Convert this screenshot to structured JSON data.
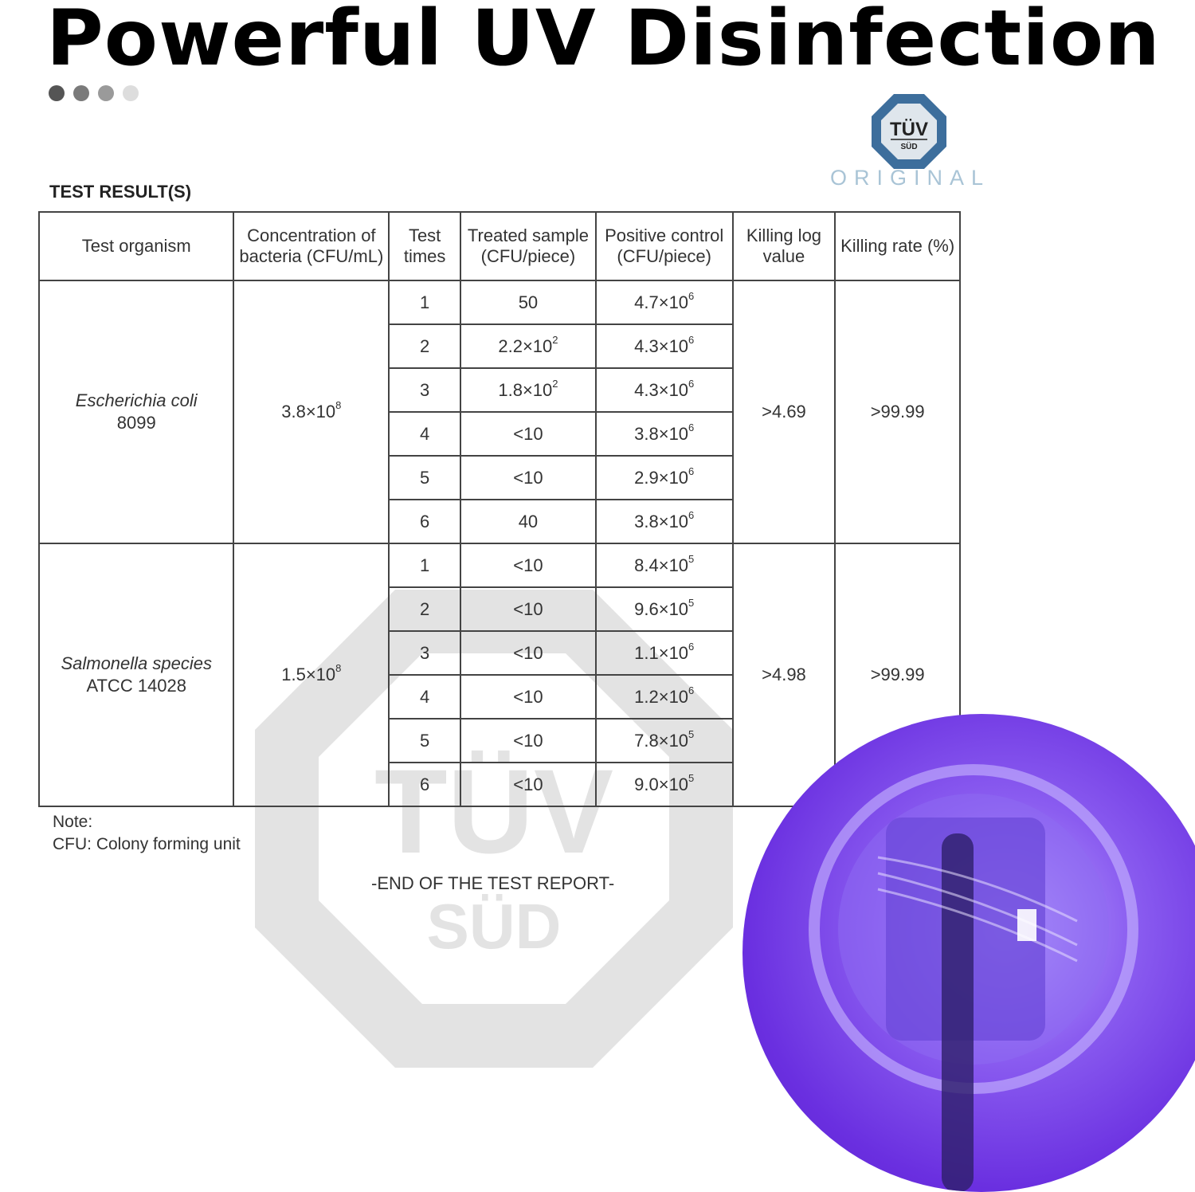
{
  "title": "Powerful UV Disinfection",
  "dots": [
    "#555555",
    "#7a7a7a",
    "#9a9a9a",
    "#dddddd"
  ],
  "logo": {
    "text_top": "TÜV",
    "text_bottom": "SÜD",
    "caption": "ORIGINAL",
    "color": "#3d6e9c"
  },
  "section_title": "TEST RESULT(S)",
  "table": {
    "headers": [
      "Test organism",
      "Concentration of bacteria (CFU/mL)",
      "Test times",
      "Treated sample (CFU/piece)",
      "Positive control (CFU/piece)",
      "Killing log value",
      "Killing rate (%)"
    ],
    "groups": [
      {
        "organism": "Escherichia coli",
        "strain": "8099",
        "concentration": {
          "base": "3.8×10",
          "exp": "8"
        },
        "killing_log": ">4.69",
        "killing_rate": ">99.99",
        "rows": [
          {
            "time": "1",
            "treated": {
              "base": "50",
              "exp": ""
            },
            "control": {
              "base": "4.7×10",
              "exp": "6"
            }
          },
          {
            "time": "2",
            "treated": {
              "base": "2.2×10",
              "exp": "2"
            },
            "control": {
              "base": "4.3×10",
              "exp": "6"
            }
          },
          {
            "time": "3",
            "treated": {
              "base": "1.8×10",
              "exp": "2"
            },
            "control": {
              "base": "4.3×10",
              "exp": "6"
            }
          },
          {
            "time": "4",
            "treated": {
              "base": "<10",
              "exp": ""
            },
            "control": {
              "base": "3.8×10",
              "exp": "6"
            }
          },
          {
            "time": "5",
            "treated": {
              "base": "<10",
              "exp": ""
            },
            "control": {
              "base": "2.9×10",
              "exp": "6"
            }
          },
          {
            "time": "6",
            "treated": {
              "base": "40",
              "exp": ""
            },
            "control": {
              "base": "3.8×10",
              "exp": "6"
            }
          }
        ]
      },
      {
        "organism": "Salmonella species",
        "strain": "ATCC 14028",
        "concentration": {
          "base": "1.5×10",
          "exp": "8"
        },
        "killing_log": ">4.98",
        "killing_rate": ">99.99",
        "rows": [
          {
            "time": "1",
            "treated": {
              "base": "<10",
              "exp": ""
            },
            "control": {
              "base": "8.4×10",
              "exp": "5"
            }
          },
          {
            "time": "2",
            "treated": {
              "base": "<10",
              "exp": ""
            },
            "control": {
              "base": "9.6×10",
              "exp": "5"
            }
          },
          {
            "time": "3",
            "treated": {
              "base": "<10",
              "exp": ""
            },
            "control": {
              "base": "1.1×10",
              "exp": "6"
            }
          },
          {
            "time": "4",
            "treated": {
              "base": "<10",
              "exp": ""
            },
            "control": {
              "base": "1.2×10",
              "exp": "6"
            }
          },
          {
            "time": "5",
            "treated": {
              "base": "<10",
              "exp": ""
            },
            "control": {
              "base": "7.8×10",
              "exp": "5"
            }
          },
          {
            "time": "6",
            "treated": {
              "base": "<10",
              "exp": ""
            },
            "control": {
              "base": "9.0×10",
              "exp": "5"
            }
          }
        ]
      }
    ]
  },
  "note": {
    "label": "Note:",
    "text": "CFU: Colony forming unit"
  },
  "end_text": "-END OF THE TEST REPORT-",
  "watermark": {
    "text_top": "TÜV",
    "text_bottom": "SÜD"
  },
  "product_image": {
    "icon": "uv-toothbrush-sterilizer-image",
    "color": "#7a45ea"
  }
}
